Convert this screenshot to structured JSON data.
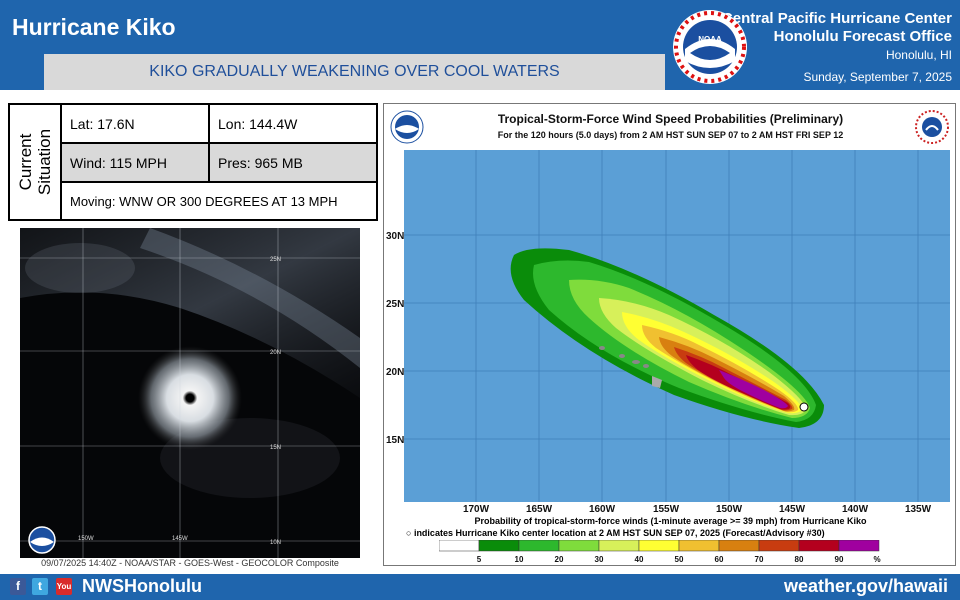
{
  "header": {
    "title": "Hurricane Kiko",
    "subtitle": "KIKO GRADUALLY WEAKENING OVER COOL WATERS",
    "org_line1": "Central Pacific Hurricane Center",
    "org_line2": "Honolulu Forecast Office",
    "location": "Honolulu, HI",
    "date": "Sunday, September 7, 2025",
    "logo_icon": "noaa-logo-icon",
    "logo_text": "NOAA"
  },
  "situation": {
    "label": "Current Situation",
    "lat": "Lat: 17.6N",
    "lon": "Lon: 144.4W",
    "wind": "Wind: 115 MPH",
    "pressure": "Pres: 965 MB",
    "moving": "Moving: WNW OR 300 DEGREES AT 13 MPH"
  },
  "satellite": {
    "caption": "09/07/2025 14:40Z - NOAA/STAR - GOES-West - GEOCOLOR Composite",
    "grid_labels": [
      "25N",
      "20N",
      "15N",
      "10N",
      "150W",
      "145W"
    ]
  },
  "map": {
    "title": "Tropical-Storm-Force Wind Speed Probabilities (Preliminary)",
    "subtitle": "For the 120 hours (5.0 days) from 2 AM HST SUN SEP 07 to 2 AM HST FRI SEP 12",
    "lat_labels": [
      "30N",
      "25N",
      "20N",
      "15N"
    ],
    "lon_labels": [
      "170W",
      "165W",
      "160W",
      "155W",
      "150W",
      "145W",
      "140W",
      "135W"
    ],
    "legend_line1": "Probability of tropical-storm-force winds (1-minute average >= 39 mph) from Hurricane Kiko",
    "legend_line2": "indicates Hurricane Kiko center location at 2 AM HST SUN SEP 07, 2025 (Forecast/Advisory #30)",
    "legend_values": [
      "5",
      "10",
      "20",
      "30",
      "40",
      "50",
      "60",
      "70",
      "80",
      "90",
      "%"
    ],
    "legend_colors": [
      "#ffffff",
      "#0a8c0a",
      "#2db82d",
      "#7fdc3c",
      "#d7f05a",
      "#ffff33",
      "#f0c030",
      "#d88010",
      "#c83c10",
      "#b4001e",
      "#a0009f"
    ],
    "ocean_color": "#5b9fd6"
  },
  "footer": {
    "handle": "NWSHonolulu",
    "website": "weather.gov/hawaii",
    "facebook_icon": "f",
    "twitter_icon": "t",
    "youtube_icon": "You"
  }
}
